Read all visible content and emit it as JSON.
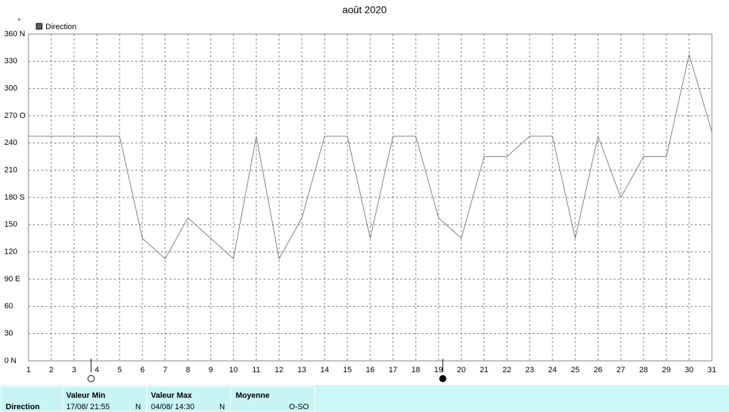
{
  "chart_data": {
    "type": "line",
    "title": "août 2020",
    "y_unit": "°",
    "x": [
      1,
      2,
      3,
      4,
      5,
      6,
      7,
      8,
      9,
      10,
      11,
      12,
      13,
      14,
      15,
      16,
      17,
      18,
      19,
      20,
      21,
      22,
      23,
      24,
      25,
      26,
      27,
      28,
      29,
      30,
      31
    ],
    "series": [
      {
        "name": "Direction",
        "color": "#808080",
        "legend_color": "#606060",
        "values": [
          247.5,
          247.5,
          247.5,
          247.5,
          247.5,
          135,
          112.5,
          157.5,
          135,
          112.5,
          247.5,
          112.5,
          157.5,
          247.5,
          247.5,
          135,
          247.5,
          247.5,
          157.5,
          135,
          225,
          225,
          247.5,
          247.5,
          135,
          247.5,
          180,
          225,
          225,
          337.5,
          252
        ]
      }
    ],
    "xlim": [
      1,
      31
    ],
    "xticks": [
      1,
      2,
      3,
      4,
      5,
      6,
      7,
      8,
      9,
      10,
      11,
      12,
      13,
      14,
      15,
      16,
      17,
      18,
      19,
      20,
      21,
      22,
      23,
      24,
      25,
      26,
      27,
      28,
      29,
      30,
      31
    ],
    "ylim": [
      0,
      360
    ],
    "yticks": [
      {
        "value": 0,
        "label": "0  N"
      },
      30,
      60,
      {
        "value": 90,
        "label": "90  E"
      },
      120,
      150,
      {
        "value": 180,
        "label": "180 S"
      },
      210,
      240,
      {
        "value": 270,
        "label": "270 O"
      },
      300,
      330,
      {
        "value": 360,
        "label": "360 N"
      }
    ],
    "grid": true
  },
  "summary": {
    "name": "Direction",
    "min": {
      "label": "Valeur Min",
      "time": "17/08/  21:55",
      "value": "N"
    },
    "max": {
      "label": "Valeur Max",
      "time": "04/08/  14:30",
      "value": "N"
    },
    "mean": {
      "label": "Moyenne",
      "value": "O-SO"
    }
  }
}
